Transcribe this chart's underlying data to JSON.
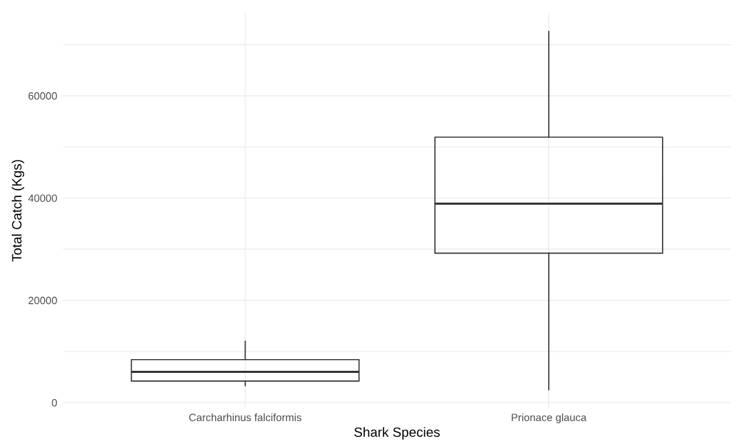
{
  "chart_data": {
    "type": "box",
    "xlabel": "Shark Species",
    "ylabel": "Total Catch (Kgs)",
    "categories": [
      "Carcharhinus falciformis",
      "Prionace glauca"
    ],
    "boxes": [
      {
        "low": 3300,
        "q1": 4200,
        "median": 6000,
        "q3": 8400,
        "high": 12000
      },
      {
        "low": 2500,
        "q1": 29200,
        "median": 38900,
        "q3": 51900,
        "high": 72600
      }
    ],
    "color": "#333333",
    "ylim": [
      -1000,
      76100
    ],
    "yticks": [
      0,
      {
        "value": 10000,
        "label": null
      },
      20000,
      {
        "value": 30000,
        "label": null
      },
      40000,
      {
        "value": 50000,
        "label": null
      },
      60000,
      {
        "value": 70000,
        "label": null
      }
    ],
    "grid": true
  }
}
